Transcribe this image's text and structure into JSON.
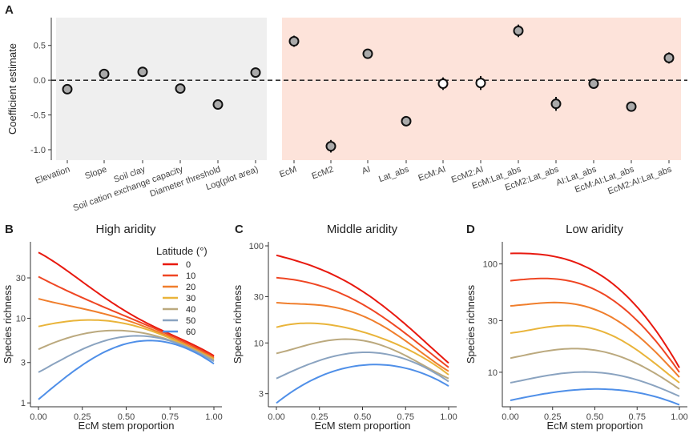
{
  "colors": {
    "bg_left": "#efefef",
    "bg_right": "#fde3da",
    "axis": "#333333",
    "text": "#222222",
    "point_fill": "#aaaaaa",
    "point_fill_open": "#ffffff"
  },
  "chart_data": [
    {
      "panel": "A",
      "type": "scatter",
      "title": "",
      "ylabel": "Coefficient estimate",
      "xlabel": "",
      "ylim": [
        -1.15,
        0.9
      ],
      "yticks": [
        0.5,
        0.0,
        -0.5,
        -1.0
      ],
      "ytick_labels": [
        "0.5",
        "0.0",
        "-0.5",
        "-1.0"
      ],
      "reference_line": 0,
      "grid": false,
      "groups": [
        {
          "background": "grey",
          "categories": [
            "Elevation",
            "Slope",
            "Soil clay",
            "Soil cation exchange capacity",
            "Diameter threshold",
            "Log(plot area)"
          ],
          "estimates": [
            -0.13,
            0.09,
            0.12,
            -0.12,
            -0.35,
            0.11
          ],
          "lower": [
            -0.17,
            0.05,
            0.08,
            -0.16,
            -0.4,
            0.07
          ],
          "upper": [
            -0.09,
            0.13,
            0.16,
            -0.08,
            -0.3,
            0.15
          ],
          "filled": [
            true,
            true,
            true,
            true,
            true,
            true
          ]
        },
        {
          "background": "salmon",
          "categories": [
            "EcM",
            "EcM2",
            "AI",
            "Lat_abs",
            "EcM:AI",
            "EcM2:AI",
            "EcM:Lat_abs",
            "EcM2:Lat_abs",
            "AI:Lat_abs",
            "EcM:AI:Lat_abs",
            "EcM2:AI:Lat_abs"
          ],
          "estimates": [
            0.56,
            -0.95,
            0.38,
            -0.59,
            -0.05,
            -0.04,
            0.71,
            -0.34,
            -0.05,
            -0.38,
            0.32
          ],
          "lower": [
            0.48,
            -1.04,
            0.34,
            -0.63,
            -0.14,
            -0.14,
            0.62,
            -0.44,
            -0.09,
            -0.45,
            0.24
          ],
          "upper": [
            0.64,
            -0.86,
            0.42,
            -0.55,
            0.04,
            0.06,
            0.8,
            -0.24,
            -0.01,
            -0.31,
            0.4
          ],
          "filled": [
            true,
            true,
            true,
            true,
            false,
            false,
            true,
            true,
            true,
            true,
            true
          ]
        }
      ]
    },
    {
      "panel": "B",
      "type": "line",
      "title": "High aridity",
      "xlabel": "EcM stem proportion",
      "ylabel": "Species richness",
      "y_scale": "log",
      "ylim": [
        0.9,
        80
      ],
      "yticks": [
        1,
        3,
        10,
        30
      ],
      "ytick_labels": [
        "1",
        "3",
        "10",
        "30"
      ],
      "xlim": [
        0,
        1
      ],
      "xticks": [
        0,
        0.25,
        0.5,
        0.75,
        1
      ],
      "xtick_labels": [
        "0.00",
        "0.25",
        "0.50",
        "0.75",
        "1.00"
      ],
      "legend": {
        "title": "Latitude (°)",
        "placement": "top-right",
        "labels": [
          "0",
          "10",
          "20",
          "30",
          "40",
          "50",
          "60"
        ]
      },
      "x": [
        0,
        0.25,
        0.5,
        0.75,
        1
      ],
      "series": [
        {
          "name": "0",
          "color": "#e8190f",
          "values": [
            60,
            27,
            12,
            6.5,
            3.6
          ]
        },
        {
          "name": "10",
          "color": "#ef4623",
          "values": [
            31,
            17.5,
            10.5,
            6.3,
            3.5
          ]
        },
        {
          "name": "20",
          "color": "#f07e2c",
          "values": [
            17,
            13,
            9.5,
            6,
            3.4
          ]
        },
        {
          "name": "30",
          "color": "#e9b43a",
          "values": [
            8,
            9.5,
            8.6,
            5.8,
            3.3
          ]
        },
        {
          "name": "40",
          "color": "#bba97e",
          "values": [
            4.3,
            6.5,
            7.1,
            5.5,
            3.2
          ]
        },
        {
          "name": "50",
          "color": "#8aa3c0",
          "values": [
            2.3,
            4.3,
            6.1,
            5.4,
            3.1
          ]
        },
        {
          "name": "60",
          "color": "#4f8fe8",
          "values": [
            1.1,
            2.8,
            5.0,
            5.1,
            2.9
          ]
        }
      ]
    },
    {
      "panel": "C",
      "type": "line",
      "title": "Middle aridity",
      "xlabel": "EcM stem proportion",
      "ylabel": "Species richness",
      "y_scale": "log",
      "ylim": [
        2.2,
        110
      ],
      "yticks": [
        3,
        10,
        30,
        100
      ],
      "ytick_labels": [
        "3",
        "10",
        "30",
        "100"
      ],
      "xlim": [
        0,
        1
      ],
      "xticks": [
        0,
        0.25,
        0.5,
        0.75,
        1
      ],
      "xtick_labels": [
        "0.00",
        "0.25",
        "0.50",
        "0.75",
        "1.00"
      ],
      "x": [
        0,
        0.25,
        0.5,
        0.75,
        1
      ],
      "series": [
        {
          "name": "0",
          "color": "#e8190f",
          "values": [
            80,
            58,
            34,
            15.5,
            6.2
          ]
        },
        {
          "name": "10",
          "color": "#ef4623",
          "values": [
            47,
            39,
            25,
            12.5,
            5.6
          ]
        },
        {
          "name": "20",
          "color": "#f07e2c",
          "values": [
            26,
            24.5,
            19,
            10.5,
            5.1
          ]
        },
        {
          "name": "30",
          "color": "#e9b43a",
          "values": [
            14.5,
            15.8,
            13,
            8.8,
            4.7
          ]
        },
        {
          "name": "40",
          "color": "#bba97e",
          "values": [
            7.8,
            10.2,
            10.6,
            7.4,
            4.3
          ]
        },
        {
          "name": "50",
          "color": "#8aa3c0",
          "values": [
            4.3,
            6.6,
            8.0,
            6.8,
            4.0
          ]
        },
        {
          "name": "60",
          "color": "#4f8fe8",
          "values": [
            2.4,
            4.5,
            5.9,
            5.5,
            3.6
          ]
        }
      ]
    },
    {
      "panel": "D",
      "type": "line",
      "title": "Low aridity",
      "xlabel": "EcM stem proportion",
      "ylabel": "Species richness",
      "y_scale": "log",
      "ylim": [
        4.8,
        160
      ],
      "yticks": [
        10,
        30,
        100
      ],
      "ytick_labels": [
        "10",
        "30",
        "100"
      ],
      "xlim": [
        0,
        1
      ],
      "xticks": [
        0,
        0.25,
        0.5,
        0.75,
        1
      ],
      "xtick_labels": [
        "0.00",
        "0.25",
        "0.50",
        "0.75",
        "1.00"
      ],
      "x": [
        0,
        0.25,
        0.5,
        0.75,
        1
      ],
      "series": [
        {
          "name": "0",
          "color": "#e8190f",
          "values": [
            125,
            118,
            85,
            40,
            11
          ]
        },
        {
          "name": "10",
          "color": "#ef4623",
          "values": [
            70,
            73,
            58,
            30,
            10
          ]
        },
        {
          "name": "20",
          "color": "#f07e2c",
          "values": [
            41,
            44,
            38,
            22,
            9
          ]
        },
        {
          "name": "30",
          "color": "#e9b43a",
          "values": [
            23,
            26.5,
            25,
            16,
            8
          ]
        },
        {
          "name": "40",
          "color": "#bba97e",
          "values": [
            13.5,
            16,
            16,
            12,
            7
          ]
        },
        {
          "name": "50",
          "color": "#8aa3c0",
          "values": [
            8,
            9.5,
            10,
            8.5,
            6
          ]
        },
        {
          "name": "60",
          "color": "#4f8fe8",
          "values": [
            5.5,
            6.5,
            7,
            6.5,
            5
          ]
        }
      ]
    }
  ]
}
